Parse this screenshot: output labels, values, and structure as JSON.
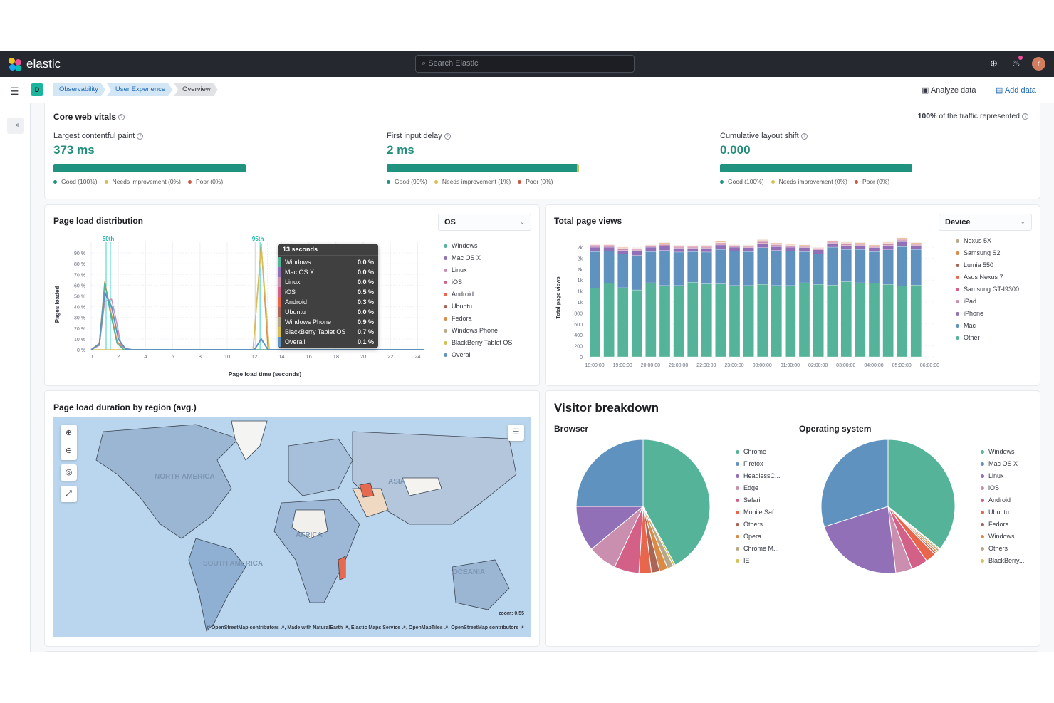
{
  "header": {
    "logo_text": "elastic",
    "search_placeholder": "Search Elastic",
    "avatar_initial": "r",
    "icons": [
      "help-icon",
      "newsfeed-icon"
    ]
  },
  "breadcrumb": {
    "space_initial": "D",
    "items": [
      "Observability",
      "User Experience",
      "Overview"
    ],
    "analyze_label": "Analyze data",
    "add_label": "Add data"
  },
  "colors": {
    "good": "#209280",
    "needs": "#d6bf57",
    "poor": "#cc5642",
    "accent": "#228f7b"
  },
  "vitals": {
    "title": "Core web vitals",
    "traffic_pct": "100%",
    "traffic_text": "of the traffic represented",
    "items": [
      {
        "label": "Largest contentful paint",
        "value": "373 ms",
        "good": 100,
        "needs": 0,
        "poor": 0,
        "good_label": "Good (100%)",
        "needs_label": "Needs improvement (0%)",
        "poor_label": "Poor (0%)"
      },
      {
        "label": "First input delay",
        "value": "2 ms",
        "good": 99,
        "needs": 1,
        "poor": 0,
        "good_label": "Good (99%)",
        "needs_label": "Needs improvement (1%)",
        "poor_label": "Poor (0%)"
      },
      {
        "label": "Cumulative layout shift",
        "value": "0.000",
        "good": 100,
        "needs": 0,
        "poor": 0,
        "good_label": "Good (100%)",
        "needs_label": "Needs improvement (0%)",
        "poor_label": "Poor (0%)"
      }
    ]
  },
  "page_load": {
    "title": "Page load distribution",
    "breakdown": "OS",
    "tooltip": {
      "title": "13 seconds",
      "rows": [
        {
          "name": "Windows",
          "value": "0.0 %",
          "color": "#54b399"
        },
        {
          "name": "Mac OS X",
          "value": "0.0 %",
          "color": "#9170b8"
        },
        {
          "name": "Linux",
          "value": "0.0 %",
          "color": "#ca8eae"
        },
        {
          "name": "iOS",
          "value": "0.5 %",
          "color": "#d36086"
        },
        {
          "name": "Android",
          "value": "0.3 %",
          "color": "#e7664c"
        },
        {
          "name": "Ubuntu",
          "value": "0.0 %",
          "color": "#aa6556"
        },
        {
          "name": "Windows Phone",
          "value": "0.9 %",
          "color": "#b9a888"
        },
        {
          "name": "BlackBerry Tablet OS",
          "value": "0.7 %",
          "color": "#d6bf57"
        },
        {
          "name": "Overall",
          "value": "0.1 %",
          "color": "#6092c0"
        }
      ]
    }
  },
  "chart_data": [
    {
      "type": "line",
      "xlabel": "Page load time (seconds)",
      "ylabel": "Pages loaded",
      "xlim": [
        0,
        24.5
      ],
      "ylim": [
        0,
        100
      ],
      "x_ticks": [
        "0",
        "2",
        "4",
        "6",
        "8",
        "10",
        "12",
        "14",
        "16",
        "18",
        "20",
        "22",
        "24"
      ],
      "y_ticks": [
        "0 %",
        "10 %",
        "20 %",
        "30 %",
        "40 %",
        "50 %",
        "60 %",
        "70 %",
        "80 %",
        "90 %"
      ],
      "grid": true,
      "legend": "right",
      "percentile_labels": [
        {
          "label": "50th",
          "x": 1.1
        },
        {
          "label": "95th",
          "x": 12.1
        }
      ],
      "legend_items": [
        {
          "name": "Windows",
          "color": "#54b399"
        },
        {
          "name": "Mac OS X",
          "color": "#9170b8"
        },
        {
          "name": "Linux",
          "color": "#ca8eae"
        },
        {
          "name": "iOS",
          "color": "#d36086"
        },
        {
          "name": "Android",
          "color": "#e7664c"
        },
        {
          "name": "Ubuntu",
          "color": "#aa6556"
        },
        {
          "name": "Fedora",
          "color": "#da8b45"
        },
        {
          "name": "Windows Phone",
          "color": "#b9a888"
        },
        {
          "name": "BlackBerry Tablet OS",
          "color": "#d6bf57"
        },
        {
          "name": "Overall",
          "color": "#6092c0"
        }
      ],
      "series": [
        {
          "name": "Linux",
          "color": "#ca8eae",
          "points": [
            [
              0,
              0
            ],
            [
              0.6,
              4
            ],
            [
              1,
              45
            ],
            [
              1.5,
              47
            ],
            [
              1.8,
              30
            ],
            [
              2.2,
              4
            ],
            [
              2.6,
              0
            ],
            [
              24.5,
              0
            ]
          ]
        },
        {
          "name": "Fedora",
          "color": "#da8b45",
          "points": [
            [
              0,
              0
            ],
            [
              0.6,
              6
            ],
            [
              1,
              63
            ],
            [
              1.4,
              38
            ],
            [
              1.9,
              8
            ],
            [
              2.4,
              0
            ],
            [
              11.9,
              0
            ],
            [
              12.5,
              98
            ],
            [
              13,
              0
            ],
            [
              24.5,
              0
            ]
          ]
        },
        {
          "name": "BlackBerry Tablet OS",
          "color": "#d6bf57",
          "points": [
            [
              0,
              0
            ],
            [
              11.9,
              0
            ],
            [
              12.5,
              96
            ],
            [
              13.1,
              0
            ],
            [
              24.5,
              0
            ]
          ]
        },
        {
          "name": "Windows",
          "color": "#54b399",
          "points": [
            [
              0,
              0
            ],
            [
              0.6,
              5
            ],
            [
              1,
              62
            ],
            [
              1.4,
              35
            ],
            [
              1.9,
              6
            ],
            [
              2.4,
              0
            ],
            [
              24.5,
              0
            ]
          ]
        },
        {
          "name": "Overall",
          "color": "#6092c0",
          "points": [
            [
              0,
              0
            ],
            [
              0.6,
              5
            ],
            [
              1,
              53
            ],
            [
              1.5,
              40
            ],
            [
              2,
              10
            ],
            [
              2.5,
              1
            ],
            [
              3,
              0
            ],
            [
              12,
              0
            ],
            [
              12.5,
              10
            ],
            [
              13,
              0
            ],
            [
              24.5,
              0
            ]
          ]
        }
      ]
    },
    {
      "type": "bar",
      "stacked": true,
      "title": "Total page views",
      "breakdown": "Device",
      "ylabel": "Total page views",
      "ylim": [
        0,
        2200
      ],
      "y_ticks": [
        "0",
        "200",
        "400",
        "600",
        "800",
        "1k",
        "1k",
        "1k",
        "2k",
        "2k",
        "2k"
      ],
      "x_ticks": [
        "18:00:00",
        "19:00:00",
        "20:00:00",
        "21:00:00",
        "22:00:00",
        "23:00:00",
        "00:00:00",
        "01:00:00",
        "02:00:00",
        "03:00:00",
        "04:00:00",
        "05:00:00",
        "06:00:00"
      ],
      "legend": "right",
      "series": [
        {
          "name": "Other",
          "color": "#54b399",
          "values": [
            1250,
            1340,
            1260,
            1220,
            1350,
            1300,
            1300,
            1360,
            1330,
            1330,
            1300,
            1300,
            1320,
            1300,
            1300,
            1350,
            1320,
            1310,
            1370,
            1350,
            1340,
            1320,
            1290,
            1310
          ]
        },
        {
          "name": "Mac",
          "color": "#6092c0",
          "values": [
            670,
            590,
            620,
            630,
            570,
            640,
            610,
            560,
            580,
            630,
            630,
            620,
            670,
            640,
            630,
            570,
            560,
            690,
            590,
            610,
            580,
            630,
            720,
            650
          ]
        },
        {
          "name": "iPhone",
          "color": "#9170b8",
          "values": [
            80,
            70,
            60,
            90,
            80,
            80,
            70,
            60,
            70,
            80,
            70,
            70,
            80,
            70,
            70,
            70,
            70,
            70,
            70,
            70,
            70,
            80,
            90,
            70
          ]
        },
        {
          "name": "iPad",
          "color": "#ca8eae",
          "values": [
            30,
            30,
            30,
            20,
            20,
            30,
            20,
            20,
            20,
            30,
            20,
            20,
            30,
            30,
            20,
            20,
            20,
            20,
            30,
            20,
            20,
            30,
            30,
            20
          ]
        },
        {
          "name": "Samsung GT-I9300",
          "color": "#d36086",
          "values": [
            10,
            10,
            10,
            10,
            10,
            10,
            10,
            10,
            10,
            10,
            10,
            10,
            10,
            10,
            10,
            10,
            10,
            10,
            10,
            10,
            10,
            10,
            10,
            10
          ]
        },
        {
          "name": "Asus Nexus 7",
          "color": "#e7664c",
          "values": [
            5,
            5,
            5,
            5,
            5,
            5,
            5,
            5,
            5,
            5,
            5,
            5,
            10,
            10,
            5,
            5,
            5,
            5,
            5,
            5,
            5,
            5,
            10,
            5
          ]
        },
        {
          "name": "Lumia 550",
          "color": "#aa6556",
          "values": [
            5,
            5,
            5,
            5,
            5,
            5,
            5,
            5,
            5,
            5,
            5,
            5,
            5,
            5,
            5,
            5,
            5,
            5,
            5,
            5,
            5,
            5,
            5,
            5
          ]
        },
        {
          "name": "Samsung S2",
          "color": "#da8b45",
          "values": [
            10,
            10,
            10,
            5,
            5,
            10,
            10,
            5,
            10,
            10,
            5,
            5,
            10,
            10,
            10,
            10,
            5,
            5,
            10,
            10,
            10,
            10,
            10,
            10
          ]
        },
        {
          "name": "Nexus 5X",
          "color": "#b9a888",
          "values": [
            5,
            5,
            5,
            5,
            5,
            5,
            5,
            5,
            5,
            5,
            5,
            5,
            5,
            5,
            5,
            5,
            5,
            5,
            5,
            5,
            5,
            5,
            5,
            5
          ]
        }
      ],
      "legend_order": [
        "Nexus 5X",
        "Samsung S2",
        "Lumia 550",
        "Asus Nexus 7",
        "Samsung GT-I9300",
        "iPad",
        "iPhone",
        "Mac",
        "Other"
      ]
    },
    {
      "type": "pie",
      "title": "Browser",
      "slices": [
        {
          "name": "Chrome",
          "value": 42,
          "color": "#54b399"
        },
        {
          "name": "IE",
          "value": 0.5,
          "color": "#d6bf57"
        },
        {
          "name": "Chrome M...",
          "value": 1.5,
          "color": "#b9a888"
        },
        {
          "name": "Opera",
          "value": 2,
          "color": "#da8b45"
        },
        {
          "name": "Others",
          "value": 2,
          "color": "#aa6556"
        },
        {
          "name": "Mobile Saf...",
          "value": 3,
          "color": "#e7664c"
        },
        {
          "name": "Safari",
          "value": 6,
          "color": "#d36086"
        },
        {
          "name": "Edge",
          "value": 7,
          "color": "#ca8eae"
        },
        {
          "name": "HeadlessC...",
          "value": 11,
          "color": "#9170b8"
        },
        {
          "name": "Firefox",
          "value": 25,
          "color": "#6092c0"
        }
      ],
      "legend_order": [
        "Chrome",
        "Firefox",
        "HeadlessC...",
        "Edge",
        "Safari",
        "Mobile Saf...",
        "Others",
        "Opera",
        "Chrome M...",
        "IE"
      ]
    },
    {
      "type": "pie",
      "title": "Operating system",
      "slices": [
        {
          "name": "Windows",
          "value": 36,
          "color": "#54b399"
        },
        {
          "name": "BlackBerry...",
          "value": 0.3,
          "color": "#d6bf57"
        },
        {
          "name": "Others",
          "value": 0.5,
          "color": "#b9a888"
        },
        {
          "name": "Windows ...",
          "value": 0.5,
          "color": "#da8b45"
        },
        {
          "name": "Fedora",
          "value": 0.5,
          "color": "#aa6556"
        },
        {
          "name": "Ubuntu",
          "value": 2.5,
          "color": "#e7664c"
        },
        {
          "name": "Android",
          "value": 4,
          "color": "#d36086"
        },
        {
          "name": "iOS",
          "value": 4,
          "color": "#ca8eae"
        },
        {
          "name": "Linux",
          "value": 22,
          "color": "#9170b8"
        },
        {
          "name": "Mac OS X",
          "value": 30,
          "color": "#6092c0"
        }
      ],
      "legend_order": [
        "Windows",
        "Mac OS X",
        "Linux",
        "iOS",
        "Android",
        "Ubuntu",
        "Fedora",
        "Windows ...",
        "Others",
        "BlackBerry..."
      ]
    }
  ],
  "region_map": {
    "title": "Page load duration by region (avg.)",
    "regions": [
      "NORTH AMERICA",
      "SOUTH AMERICA",
      "AFRICA",
      "ASIA",
      "OCEANIA"
    ],
    "zoom_text": "zoom: 0.55",
    "attribution": "© OpenStreetMap contributors ↗, Made with NaturalEarth ↗, Elastic Maps Service ↗, OpenMapTiles ↗, OpenStreetMap contributors ↗"
  },
  "visitor": {
    "title": "Visitor breakdown",
    "browser_title": "Browser",
    "os_title": "Operating system"
  }
}
